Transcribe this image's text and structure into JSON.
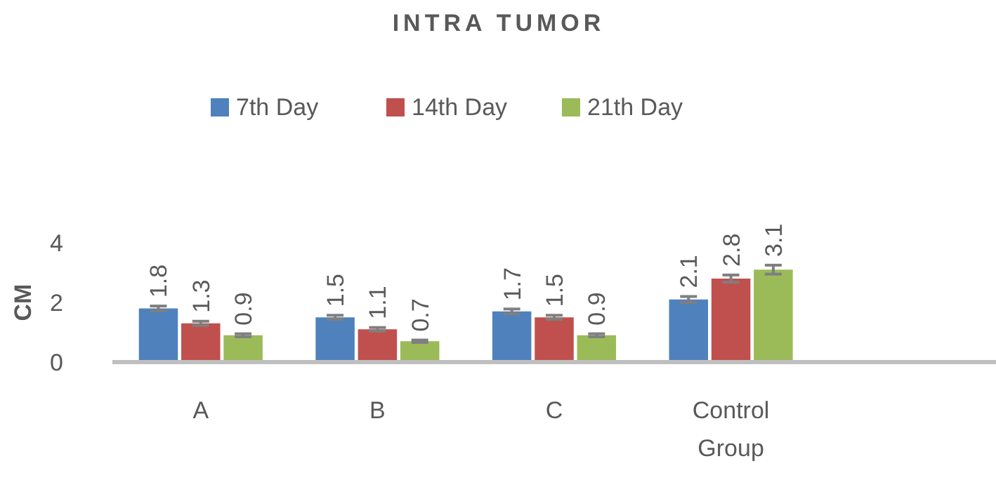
{
  "chart_data": {
    "type": "bar",
    "title": "INTRA TUMOR",
    "ylabel": "CM",
    "categories": [
      "A",
      "B",
      "C",
      "Control Group",
      null
    ],
    "series": [
      {
        "name": "7th Day",
        "color": "#4f81bd",
        "values": [
          1.8,
          1.5,
          1.7,
          2.1,
          null
        ],
        "errors": [
          0.08,
          0.07,
          0.08,
          0.1,
          null
        ]
      },
      {
        "name": "14th Day",
        "color": "#c0504d",
        "values": [
          1.3,
          1.1,
          1.5,
          2.8,
          null
        ],
        "errors": [
          0.07,
          0.06,
          0.07,
          0.12,
          null
        ]
      },
      {
        "name": "21th Day",
        "color": "#9bbb59",
        "values": [
          0.9,
          0.7,
          0.9,
          3.1,
          null
        ],
        "errors": [
          0.05,
          0.04,
          0.05,
          0.15,
          null
        ]
      }
    ],
    "ylim": [
      0,
      4
    ],
    "yticks": [
      0,
      2,
      4
    ],
    "data_labels": true,
    "legend": "top",
    "grid": false
  }
}
